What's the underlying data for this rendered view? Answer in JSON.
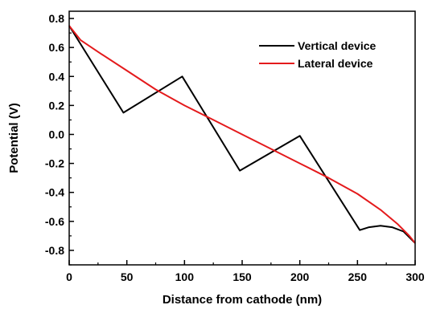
{
  "chart_data": {
    "type": "line",
    "xlabel": "Distance from cathode (nm)",
    "ylabel": "Potential (V)",
    "xlim": [
      0,
      300
    ],
    "ylim": [
      -0.9,
      0.85
    ],
    "xticks": [
      0,
      50,
      100,
      150,
      200,
      250,
      300
    ],
    "yticks": [
      0.8,
      0.6,
      0.4,
      0.2,
      0.0,
      -0.2,
      -0.4,
      -0.6,
      -0.8
    ],
    "xtick_labels": [
      "0",
      "50",
      "100",
      "150",
      "200",
      "250",
      "300"
    ],
    "ytick_labels": [
      "0.8",
      "0.6",
      "0.4",
      "0.2",
      "0.0",
      "-0.2",
      "-0.4",
      "-0.6",
      "-0.8"
    ],
    "grid": false,
    "legend_position": "top-right",
    "series": [
      {
        "name": "Vertical device",
        "color": "#000000",
        "x": [
          0,
          47,
          98,
          148,
          200,
          252,
          260,
          270,
          280,
          290,
          300
        ],
        "y": [
          0.75,
          0.15,
          0.4,
          -0.25,
          -0.01,
          -0.66,
          -0.64,
          -0.63,
          -0.64,
          -0.67,
          -0.75
        ]
      },
      {
        "name": "Lateral device",
        "color": "#e41a1c",
        "x": [
          0,
          10,
          25,
          50,
          75,
          100,
          125,
          150,
          175,
          200,
          225,
          250,
          270,
          285,
          295,
          300
        ],
        "y": [
          0.75,
          0.65,
          0.57,
          0.44,
          0.31,
          0.2,
          0.1,
          0.0,
          -0.1,
          -0.2,
          -0.3,
          -0.41,
          -0.52,
          -0.62,
          -0.7,
          -0.75
        ]
      }
    ]
  }
}
